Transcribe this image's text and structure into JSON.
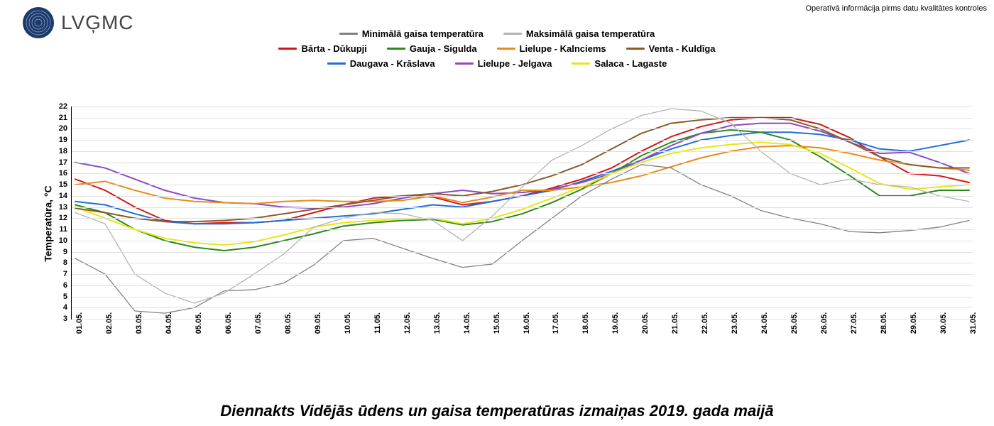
{
  "logo_text": "LVĢMC",
  "disclaimer": "Operatīvā informācija pirms datu kvalitātes kontroles",
  "chart": {
    "type": "line",
    "title": "Diennakts Vidējās ūdens un gaisa temperatūras izmaiņas 2019. gada maijā",
    "yaxis_label": "Temperatūra, °C",
    "ylim": [
      3,
      22
    ],
    "ytick_step": 1,
    "background_color": "#ffffff",
    "grid_color": "#e0e0e0",
    "axis_color": "#000000",
    "line_width": 2,
    "title_fontsize": 22,
    "tick_fontsize": 11,
    "legend_fontsize": 13,
    "x_categories": [
      "01.05.",
      "02.05.",
      "03.05.",
      "04.05.",
      "05.05.",
      "06.05.",
      "07.05.",
      "08.05.",
      "09.05.",
      "10.05.",
      "11.05.",
      "12.05.",
      "13.05.",
      "14.05.",
      "15.05.",
      "16.05.",
      "17.05.",
      "18.05.",
      "19.05.",
      "20.05.",
      "21.05.",
      "22.05.",
      "23.05.",
      "24.05.",
      "25.05.",
      "26.05.",
      "27.05.",
      "28.05.",
      "29.05.",
      "30.05.",
      "31.05."
    ],
    "legend_air": [
      {
        "label": "Minimālā gaisa temperatūra",
        "color": "#808080"
      },
      {
        "label": "Maksimālā gaisa temperatūra",
        "color": "#b3b3b3"
      }
    ],
    "series": [
      {
        "label": "Bārta - Dūkupji",
        "color": "#d4161a",
        "values": [
          15.5,
          14.5,
          13.0,
          11.8,
          11.5,
          11.6,
          11.6,
          11.8,
          12.5,
          13.2,
          13.8,
          14.0,
          13.9,
          13.2,
          13.5,
          14.0,
          14.7,
          15.5,
          16.5,
          18.0,
          19.3,
          20.2,
          20.8,
          21.0,
          21.0,
          20.4,
          19.2,
          17.5,
          16.0,
          15.8,
          15.2
        ]
      },
      {
        "label": "Daugava - Krāslava",
        "color": "#1f6fd4",
        "values": [
          13.5,
          13.2,
          12.4,
          11.7,
          11.5,
          11.5,
          11.6,
          11.8,
          12.0,
          12.2,
          12.4,
          12.8,
          13.2,
          13.0,
          13.5,
          14.0,
          14.5,
          15.3,
          16.2,
          17.2,
          18.2,
          19.0,
          19.4,
          19.7,
          19.7,
          19.5,
          19.0,
          18.2,
          18.0,
          18.5,
          19.0
        ]
      },
      {
        "label": "Gauja - Sigulda",
        "color": "#2b8a1a",
        "values": [
          13.2,
          12.5,
          11.0,
          10.0,
          9.4,
          9.1,
          9.4,
          10.0,
          10.6,
          11.3,
          11.6,
          11.8,
          11.9,
          11.4,
          11.7,
          12.4,
          13.4,
          14.6,
          16.0,
          17.6,
          18.8,
          19.6,
          19.9,
          19.7,
          19.0,
          17.5,
          15.8,
          14.0,
          14.0,
          14.5,
          14.5
        ]
      },
      {
        "label": "Lielupe - Jelgava",
        "color": "#8a4cc1",
        "values": [
          17.0,
          16.5,
          15.5,
          14.5,
          13.8,
          13.4,
          13.3,
          13.0,
          12.9,
          13.0,
          13.3,
          13.8,
          14.2,
          14.5,
          14.2,
          14.3,
          14.6,
          15.2,
          16.0,
          17.2,
          18.5,
          19.6,
          20.3,
          20.5,
          20.5,
          19.8,
          18.8,
          17.8,
          17.9,
          17.0,
          16.0
        ]
      },
      {
        "label": "Lielupe - Kalnciems",
        "color": "#e88b1a",
        "values": [
          15.0,
          15.3,
          14.5,
          13.8,
          13.5,
          13.4,
          13.3,
          13.5,
          13.6,
          13.5,
          13.5,
          13.6,
          14.0,
          13.4,
          13.9,
          14.5,
          14.5,
          14.8,
          15.2,
          15.8,
          16.6,
          17.4,
          18.0,
          18.4,
          18.5,
          18.3,
          17.8,
          17.2,
          16.8,
          16.5,
          16.3
        ]
      },
      {
        "label": "Salaca - Lagaste",
        "color": "#e6e61a",
        "values": [
          13.0,
          12.0,
          11.0,
          10.2,
          9.8,
          9.6,
          9.9,
          10.5,
          11.2,
          11.6,
          11.8,
          11.9,
          12.0,
          11.5,
          12.0,
          12.8,
          13.8,
          14.8,
          16.0,
          17.0,
          17.8,
          18.3,
          18.6,
          18.8,
          18.6,
          17.8,
          16.5,
          15.1,
          14.6,
          14.8,
          15.0
        ]
      },
      {
        "label": "Venta - Kuldīga",
        "color": "#8a5a2b",
        "values": [
          12.9,
          12.5,
          12.0,
          11.7,
          11.7,
          11.8,
          12.0,
          12.4,
          12.8,
          13.2,
          13.6,
          14.0,
          14.2,
          14.0,
          14.4,
          15.0,
          15.8,
          16.8,
          18.2,
          19.6,
          20.5,
          20.8,
          21.0,
          21.0,
          20.8,
          20.0,
          18.8,
          17.5,
          16.8,
          16.5,
          16.5
        ]
      },
      {
        "label": "Minimālā gaisa temperatūra",
        "color": "#808080",
        "air": true,
        "width": 1.3,
        "values": [
          8.4,
          7.0,
          3.7,
          3.5,
          4.0,
          5.5,
          5.6,
          6.2,
          7.8,
          10.0,
          10.2,
          9.3,
          8.4,
          7.6,
          7.9,
          10.0,
          12.0,
          14.0,
          15.5,
          16.8,
          16.5,
          15.0,
          14.0,
          12.7,
          12.0,
          11.5,
          10.8,
          10.7,
          10.9,
          11.2,
          11.8
        ]
      },
      {
        "label": "Maksimālā gaisa temperatūra",
        "color": "#b3b3b3",
        "air": true,
        "width": 1.3,
        "values": [
          12.5,
          11.5,
          7.0,
          5.3,
          4.4,
          5.3,
          7.0,
          8.8,
          11.2,
          12.0,
          12.5,
          12.4,
          11.8,
          10.0,
          12.2,
          14.8,
          17.2,
          18.5,
          20.0,
          21.2,
          21.8,
          21.6,
          20.5,
          18.0,
          16.0,
          15.0,
          15.5,
          15.0,
          14.8,
          14.0,
          13.5
        ]
      }
    ]
  }
}
